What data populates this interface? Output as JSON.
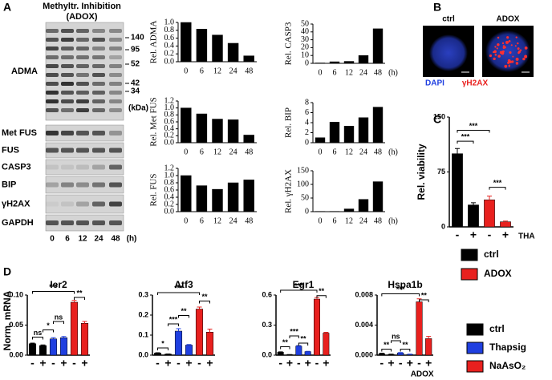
{
  "panel_labels": [
    "A",
    "B",
    "C",
    "D"
  ],
  "blot": {
    "title": [
      "Methyltr. Inhibition",
      "(ADOX)"
    ],
    "rows": [
      "ADMA",
      "Met FUS",
      "FUS",
      "CASP3",
      "BIP",
      "γH2AX",
      "GAPDH"
    ],
    "lanes": [
      "0",
      "6",
      "12",
      "24",
      "48"
    ],
    "lane_unit": "(h)",
    "markers": [
      "140",
      "95",
      "52",
      "42",
      "34"
    ],
    "marker_unit": "(kDa)"
  },
  "images": {
    "columns": [
      "ctrl",
      "ADOX"
    ],
    "stains": [
      "DAPI",
      "γH2AX"
    ]
  },
  "chart_data": [
    {
      "type": "bar",
      "ylabel": "Rel. ADMA",
      "categories": [
        "0",
        "6",
        "12",
        "24",
        "48"
      ],
      "values": [
        1.0,
        0.83,
        0.68,
        0.47,
        0.15
      ],
      "color": "#000000",
      "ylim": [
        0,
        1
      ],
      "yticks": [
        {
          "value": 0,
          "label": "0.0"
        },
        0.2,
        0.4,
        0.6,
        0.8,
        {
          "value": 1,
          "label": "1.0"
        }
      ]
    },
    {
      "type": "bar",
      "ylabel": "Rel. CASP3",
      "xunit": "(h)",
      "categories": [
        "0",
        "6",
        "12",
        "24",
        "48"
      ],
      "values": [
        0.5,
        2,
        2.5,
        10,
        44
      ],
      "color": "#000000",
      "ylim": [
        0,
        50
      ],
      "yticks": [
        0,
        10,
        20,
        30,
        40,
        50
      ]
    },
    {
      "type": "bar",
      "ylabel": "Rel. Met FUS",
      "categories": [
        "0",
        "6",
        "12",
        "24",
        "48"
      ],
      "values": [
        1.0,
        0.83,
        0.68,
        0.66,
        0.22
      ],
      "color": "#000000",
      "ylim": [
        0,
        1.2
      ],
      "yticks": [
        {
          "value": 0,
          "label": "0.0"
        },
        0.2,
        0.4,
        0.6,
        0.8,
        {
          "value": 1,
          "label": "1.0"
        },
        1.2
      ]
    },
    {
      "type": "bar",
      "ylabel": "Rel. BIP",
      "xunit": "(h)",
      "categories": [
        "0",
        "6",
        "12",
        "24",
        "48"
      ],
      "values": [
        1.0,
        4.1,
        3.3,
        5.0,
        7.1
      ],
      "color": "#000000",
      "ylim": [
        0,
        8
      ],
      "yticks": [
        0,
        2,
        4,
        6,
        8
      ]
    },
    {
      "type": "bar",
      "ylabel": "Rel. FUS",
      "categories": [
        "0",
        "6",
        "12",
        "24",
        "48"
      ],
      "values": [
        1.0,
        0.72,
        0.62,
        0.8,
        0.88
      ],
      "color": "#000000",
      "ylim": [
        0,
        1.2
      ],
      "yticks": [
        {
          "value": 0,
          "label": "0.0"
        },
        0.2,
        0.4,
        0.6,
        0.8,
        {
          "value": 1,
          "label": "1.0"
        },
        1.2
      ]
    },
    {
      "type": "bar",
      "ylabel": "Rel. γH2AX",
      "xunit": "(h)",
      "categories": [
        "0",
        "6",
        "12",
        "24",
        "48"
      ],
      "values": [
        1,
        1,
        10,
        45,
        110
      ],
      "color": "#000000",
      "ylim": [
        0,
        150
      ],
      "yticks": [
        0,
        50,
        100,
        150
      ]
    },
    {
      "type": "bar",
      "ylabel": "Rel. viability",
      "annotation": "THA",
      "categories": [
        "-",
        "+",
        "-",
        "+"
      ],
      "values": [
        100,
        30,
        37,
        7
      ],
      "errors": [
        7,
        3,
        5,
        1
      ],
      "colors": [
        "#000000",
        "#000000",
        "#e8201e",
        "#e8201e"
      ],
      "ylim": [
        0,
        150
      ],
      "yticks": [
        0,
        75,
        150
      ],
      "significance": [
        "***",
        "***",
        "***"
      ],
      "legend": [
        {
          "name": "ctrl",
          "color": "#000000"
        },
        {
          "name": "ADOX",
          "color": "#e8201e"
        }
      ]
    },
    {
      "type": "bar",
      "title": "Ier2",
      "ylabel": "Norm. mRNA",
      "categories": [
        "-",
        "+",
        "-",
        "+",
        "-",
        "+"
      ],
      "values": [
        0.019,
        0.016,
        0.027,
        0.029,
        0.088,
        0.053
      ],
      "errors": [
        0.001,
        0.001,
        0.002,
        0.002,
        0.003,
        0.003
      ],
      "colors": [
        "#000000",
        "#000000",
        "#1f3fe0",
        "#1f3fe0",
        "#e8201e",
        "#e8201e"
      ],
      "ylim": [
        0,
        0.1
      ],
      "yticks": [
        {
          "value": 0,
          "label": "0.00"
        },
        0.05,
        {
          "value": 0.1,
          "label": "0.10"
        }
      ],
      "significance": [
        "ns",
        "*",
        "ns",
        "***",
        "**"
      ]
    },
    {
      "type": "bar",
      "title": "Atf3",
      "categories": [
        "-",
        "+",
        "-",
        "+",
        "-",
        "+"
      ],
      "values": [
        0.01,
        0.005,
        0.12,
        0.05,
        0.23,
        0.115
      ],
      "errors": [
        0.002,
        0.001,
        0.012,
        0.003,
        0.01,
        0.015
      ],
      "colors": [
        "#000000",
        "#000000",
        "#1f3fe0",
        "#1f3fe0",
        "#e8201e",
        "#e8201e"
      ],
      "ylim": [
        0,
        0.3
      ],
      "yticks": [
        {
          "value": 0,
          "label": "0.0"
        },
        0.1,
        0.2,
        0.3
      ],
      "significance": [
        "*",
        "***",
        "**",
        "***",
        "**"
      ]
    },
    {
      "type": "bar",
      "title": "Egr1",
      "categories": [
        "-",
        "+",
        "-",
        "+",
        "-",
        "+"
      ],
      "values": [
        0.03,
        0.005,
        0.09,
        0.035,
        0.56,
        0.22
      ],
      "errors": [
        0.003,
        0.001,
        0.005,
        0.003,
        0.015,
        0.008
      ],
      "colors": [
        "#000000",
        "#000000",
        "#1f3fe0",
        "#1f3fe0",
        "#e8201e",
        "#e8201e"
      ],
      "ylim": [
        0,
        0.6
      ],
      "yticks": [
        {
          "value": 0,
          "label": "0.0"
        },
        0.3,
        0.6
      ],
      "significance": [
        "**",
        "***",
        "**",
        "***",
        "**"
      ]
    },
    {
      "type": "bar",
      "title": "Hspa1b",
      "xnote": "ADOX",
      "categories": [
        "-",
        "+",
        "-",
        "+",
        "-",
        "+"
      ],
      "values": [
        0.0002,
        0.0001,
        0.0003,
        0.0001,
        0.0071,
        0.0022
      ],
      "errors": [
        5e-05,
        3e-05,
        5e-05,
        3e-05,
        0.0004,
        0.0003
      ],
      "colors": [
        "#000000",
        "#000000",
        "#1f3fe0",
        "#1f3fe0",
        "#e8201e",
        "#e8201e"
      ],
      "ylim": [
        0,
        0.008
      ],
      "yticks": [
        {
          "value": 0,
          "label": "0.000"
        },
        0.004,
        0.008
      ],
      "significance": [
        "**",
        "ns",
        "**",
        "***",
        "**"
      ],
      "legend": [
        {
          "name": "ctrl",
          "color": "#000000"
        },
        {
          "name": "Thapsig",
          "color": "#1f3fe0"
        },
        {
          "name": "NaAsO₂",
          "color": "#e8201e"
        }
      ]
    }
  ]
}
